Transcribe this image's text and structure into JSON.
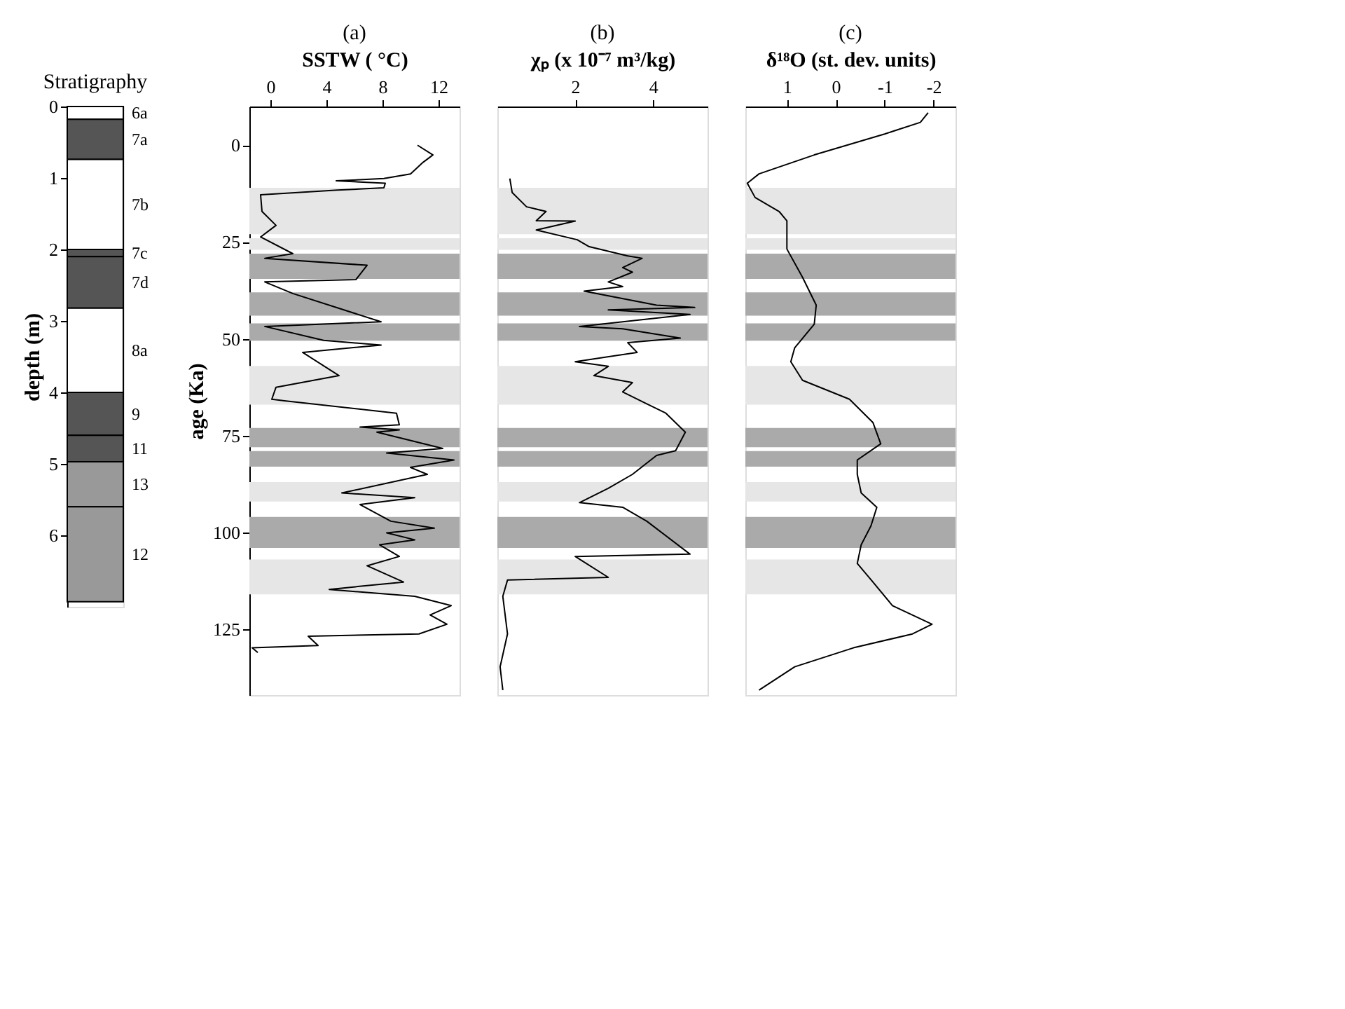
{
  "chart_data": [
    {
      "type": "bar",
      "stacked": true,
      "title": "Stratigraphy",
      "ylabel": "depth (m)",
      "categories": [
        null
      ],
      "ylim": [
        7,
        0
      ],
      "yticks": [
        0,
        1,
        2,
        3,
        4,
        5,
        6
      ],
      "tick_labels": "y",
      "series": [
        {
          "name": "6a",
          "color": "#ffffff",
          "values": [
            0.18
          ]
        },
        {
          "name": "7a",
          "color": "#555555",
          "values": [
            0.56
          ]
        },
        {
          "name": "7b",
          "color": "#ffffff",
          "values": [
            1.26
          ]
        },
        {
          "name": "7c",
          "color": "#555555",
          "values": [
            0.1
          ]
        },
        {
          "name": "7d",
          "color": "#555555",
          "values": [
            0.72
          ]
        },
        {
          "name": "8a",
          "color": "#ffffff",
          "values": [
            1.18
          ]
        },
        {
          "name": "9",
          "color": "#555555",
          "values": [
            0.6
          ]
        },
        {
          "name": "11",
          "color": "#555555",
          "values": [
            0.37
          ]
        },
        {
          "name": "13",
          "color": "#999999",
          "values": [
            0.63
          ]
        },
        {
          "name": "12",
          "color": "#999999",
          "values": [
            1.33
          ]
        }
      ]
    },
    {
      "type": "line",
      "title": "(a)",
      "xlabel": "SSTW ( °C)",
      "ylabel": "age (Ka)",
      "xlim": [
        -1.5,
        13.5
      ],
      "xticks": [
        0,
        4,
        8,
        12
      ],
      "ylim": [
        142,
        -10
      ],
      "yticks": [
        0,
        25,
        50,
        75,
        100,
        125
      ],
      "marker": "none",
      "line_style": "solid",
      "series": [
        {
          "color": "#000000",
          "x": [
            10.5,
            11.6,
            10.9,
            10.0,
            8.1,
            4.7,
            8.2,
            8.1,
            4.8,
            -0.7,
            -0.6,
            0.4,
            -0.7,
            1.6,
            -0.4,
            6.9,
            6.1,
            -0.4,
            1.6,
            7.9,
            -0.4,
            3.8,
            7.9,
            2.3,
            4.9,
            0.4,
            0.1,
            1.0,
            9.0,
            9.2,
            6.4,
            9.2,
            7.6,
            12.3,
            8.3,
            13.1,
            10.0,
            11.2,
            5.1,
            10.3,
            6.4,
            8.6,
            11.7,
            8.3,
            10.3,
            7.8,
            9.2,
            6.9,
            9.5,
            4.2,
            10.3,
            12.9,
            11.4,
            12.6,
            10.6,
            2.7,
            3.4,
            -1.3,
            -0.9
          ],
          "values": [
            0,
            2.5,
            4.4,
            7.4,
            8.6,
            9.2,
            9.8,
            11.0,
            11.6,
            12.8,
            17.1,
            20.7,
            23.7,
            28.0,
            29.2,
            31.0,
            34.7,
            35.3,
            38.3,
            45.6,
            46.8,
            50.4,
            51.6,
            53.5,
            59.5,
            62.5,
            65.6,
            66.0,
            69.2,
            72.2,
            72.8,
            73.5,
            74.1,
            78.3,
            79.5,
            81.3,
            83.2,
            85.0,
            89.8,
            91.0,
            92.8,
            97.1,
            98.9,
            100.1,
            101.9,
            103.2,
            106.2,
            108.6,
            112.8,
            114.7,
            116.5,
            118.9,
            121.3,
            123.7,
            126.2,
            126.8,
            129.2,
            129.8,
            131.0
          ]
        }
      ],
      "bands": [
        {
          "axis": "y",
          "from": 11,
          "to": 23,
          "color": "#e6e6e6"
        },
        {
          "axis": "y",
          "from": 24,
          "to": 27,
          "color": "#e6e6e6"
        },
        {
          "axis": "y",
          "from": 28,
          "to": 34.5,
          "color": "#aaaaaa"
        },
        {
          "axis": "y",
          "from": 38,
          "to": 44,
          "color": "#aaaaaa"
        },
        {
          "axis": "y",
          "from": 46,
          "to": 50.5,
          "color": "#aaaaaa"
        },
        {
          "axis": "y",
          "from": 57,
          "to": 67,
          "color": "#e6e6e6"
        },
        {
          "axis": "y",
          "from": 73,
          "to": 78,
          "color": "#aaaaaa"
        },
        {
          "axis": "y",
          "from": 79,
          "to": 83,
          "color": "#aaaaaa"
        },
        {
          "axis": "y",
          "from": 87,
          "to": 92,
          "color": "#e6e6e6"
        },
        {
          "axis": "y",
          "from": 96,
          "to": 104,
          "color": "#aaaaaa"
        },
        {
          "axis": "y",
          "from": 107,
          "to": 116,
          "color": "#e6e6e6"
        }
      ]
    },
    {
      "type": "line",
      "title": "(b)",
      "xlabel": "χₚ (x 10⁻⁷ m³/kg)",
      "xlim": [
        0,
        5.4
      ],
      "xticks": [
        2,
        4
      ],
      "ylim": [
        142,
        -10
      ],
      "tick_labels": "x",
      "marker": "none",
      "line_style": "solid",
      "series": [
        {
          "color": "#000000",
          "x": [
            0.32,
            0.38,
            0.75,
            1.25,
            1.0,
            2.0,
            1.0,
            2.05,
            2.36,
            3.35,
            3.72,
            3.22,
            3.47,
            2.85,
            3.22,
            2.23,
            4.09,
            5.07,
            2.85,
            4.95,
            2.11,
            3.22,
            4.7,
            3.35,
            3.59,
            2.0,
            2.85,
            2.48,
            3.47,
            3.22,
            3.84,
            4.33,
            4.83,
            4.58,
            4.09,
            3.47,
            2.85,
            2.11,
            3.22,
            3.84,
            4.95,
            2.0,
            2.85,
            0.26,
            0.14,
            0.26,
            0.07,
            0.14
          ],
          "values": [
            8.6,
            12.2,
            15.9,
            17.1,
            19.5,
            19.6,
            21.9,
            24.4,
            26.2,
            28.6,
            29.2,
            31.6,
            32.8,
            35.3,
            36.5,
            37.7,
            41.3,
            41.9,
            42.5,
            43.7,
            46.8,
            47.4,
            49.8,
            51.0,
            53.5,
            55.9,
            57.1,
            59.5,
            61.3,
            63.7,
            66.8,
            69.2,
            74.1,
            78.9,
            80.1,
            85.0,
            88.6,
            92.3,
            93.5,
            97.1,
            105.6,
            106.2,
            111.6,
            112.3,
            116.5,
            126.2,
            134.7,
            140.7
          ]
        }
      ],
      "bands": [
        {
          "axis": "y",
          "from": 11,
          "to": 23,
          "color": "#e6e6e6"
        },
        {
          "axis": "y",
          "from": 24,
          "to": 27,
          "color": "#e6e6e6"
        },
        {
          "axis": "y",
          "from": 28,
          "to": 34.5,
          "color": "#aaaaaa"
        },
        {
          "axis": "y",
          "from": 38,
          "to": 44,
          "color": "#aaaaaa"
        },
        {
          "axis": "y",
          "from": 46,
          "to": 50.5,
          "color": "#aaaaaa"
        },
        {
          "axis": "y",
          "from": 57,
          "to": 67,
          "color": "#e6e6e6"
        },
        {
          "axis": "y",
          "from": 73,
          "to": 78,
          "color": "#aaaaaa"
        },
        {
          "axis": "y",
          "from": 79,
          "to": 83,
          "color": "#aaaaaa"
        },
        {
          "axis": "y",
          "from": 87,
          "to": 92,
          "color": "#e6e6e6"
        },
        {
          "axis": "y",
          "from": 96,
          "to": 104,
          "color": "#aaaaaa"
        },
        {
          "axis": "y",
          "from": 107,
          "to": 116,
          "color": "#e6e6e6"
        }
      ]
    },
    {
      "type": "line",
      "title": "(c)",
      "xlabel": "δ¹⁸O  (st. dev. units)",
      "xlim": [
        1.85,
        -2.45
      ],
      "xticks": [
        1,
        0,
        -1,
        -2
      ],
      "ylim": [
        142,
        -10
      ],
      "tick_labels": "x",
      "marker": "none",
      "line_style": "solid",
      "series": [
        {
          "color": "#000000",
          "x": [
            -1.89,
            -1.73,
            -1.0,
            0.44,
            1.57,
            1.81,
            1.65,
            1.16,
            1.0,
            1.0,
            0.68,
            0.4,
            0.44,
            0.84,
            0.92,
            0.68,
            -0.28,
            -0.76,
            -0.92,
            -0.44,
            -0.44,
            -0.52,
            -0.84,
            -0.72,
            -0.52,
            -0.44,
            -0.76,
            -1.16,
            -1.97,
            -1.57,
            -0.36,
            0.84,
            1.57
          ],
          "values": [
            -8.4,
            -5.9,
            -2.9,
            2.5,
            7.4,
            9.8,
            13.5,
            17.1,
            19.5,
            26.8,
            34.1,
            41.3,
            46.2,
            52.3,
            55.9,
            60.7,
            65.6,
            71.6,
            77.1,
            81.3,
            85.0,
            89.8,
            93.5,
            98.3,
            103.2,
            108.0,
            112.8,
            118.9,
            123.7,
            126.2,
            129.8,
            134.7,
            140.7
          ]
        }
      ],
      "bands": [
        {
          "axis": "y",
          "from": 11,
          "to": 23,
          "color": "#e6e6e6"
        },
        {
          "axis": "y",
          "from": 24,
          "to": 27,
          "color": "#e6e6e6"
        },
        {
          "axis": "y",
          "from": 28,
          "to": 34.5,
          "color": "#aaaaaa"
        },
        {
          "axis": "y",
          "from": 38,
          "to": 44,
          "color": "#aaaaaa"
        },
        {
          "axis": "y",
          "from": 46,
          "to": 50.5,
          "color": "#aaaaaa"
        },
        {
          "axis": "y",
          "from": 57,
          "to": 67,
          "color": "#e6e6e6"
        },
        {
          "axis": "y",
          "from": 73,
          "to": 78,
          "color": "#aaaaaa"
        },
        {
          "axis": "y",
          "from": 79,
          "to": 83,
          "color": "#aaaaaa"
        },
        {
          "axis": "y",
          "from": 87,
          "to": 92,
          "color": "#e6e6e6"
        },
        {
          "axis": "y",
          "from": 96,
          "to": 104,
          "color": "#aaaaaa"
        },
        {
          "axis": "y",
          "from": 107,
          "to": 116,
          "color": "#e6e6e6"
        }
      ]
    }
  ]
}
